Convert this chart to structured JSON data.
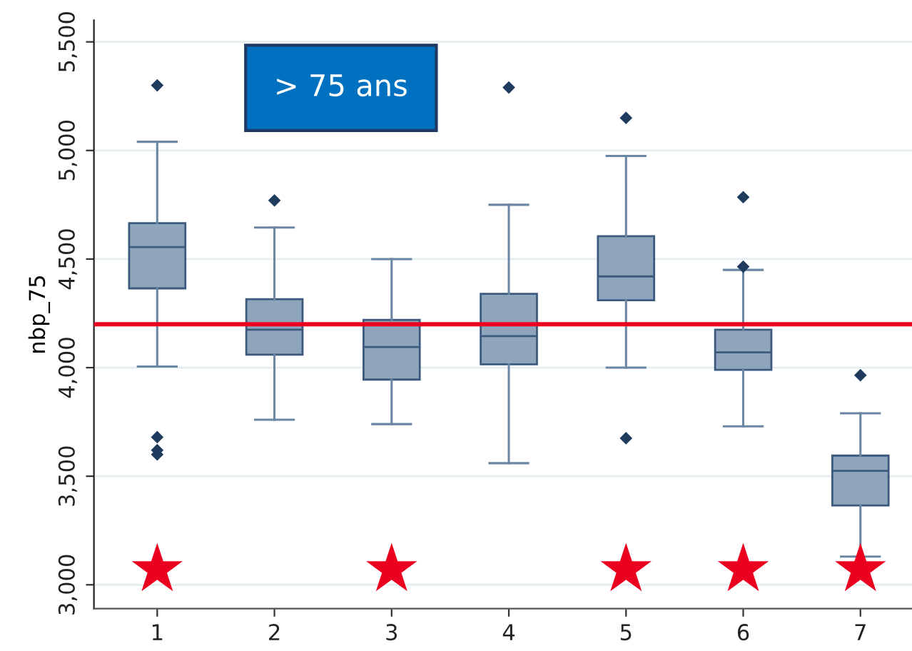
{
  "chart_data": {
    "type": "box",
    "ylabel": "nbp_75",
    "annotations": [
      "> 75 ans"
    ],
    "categories": [
      "1",
      "2",
      "3",
      "4",
      "5",
      "6",
      "7"
    ],
    "series": [
      {
        "type": "box",
        "color": "#8fa5bb",
        "marker": "diamond",
        "boxes": [
          {
            "low": 4005,
            "q1": 4365,
            "median": 4555,
            "q3": 4665,
            "high": 5040,
            "outliers": [
              5300,
              3680,
              3620,
              3600
            ]
          },
          {
            "low": 3760,
            "q1": 4060,
            "median": 4175,
            "q3": 4315,
            "high": 4645,
            "outliers": [
              4770
            ]
          },
          {
            "low": 3740,
            "q1": 3945,
            "median": 4095,
            "q3": 4220,
            "high": 4500
          },
          {
            "low": 3560,
            "q1": 4015,
            "median": 4145,
            "q3": 4340,
            "high": 4750,
            "outliers": [
              5290
            ]
          },
          {
            "low": 4000,
            "q1": 4310,
            "median": 4420,
            "q3": 4605,
            "high": 4975,
            "outliers": [
              5150,
              3675
            ]
          },
          {
            "low": 3730,
            "q1": 3990,
            "median": 4070,
            "q3": 4175,
            "high": 4450,
            "outliers": [
              4785,
              4465
            ]
          },
          {
            "low": 3130,
            "q1": 3365,
            "median": 3525,
            "q3": 3595,
            "high": 3790,
            "outliers": [
              3965
            ]
          }
        ]
      },
      {
        "type": "scatter",
        "color": "#ec0020",
        "marker": "star",
        "values": [
          3070,
          null,
          3070,
          null,
          3070,
          3070,
          3070
        ]
      }
    ],
    "ref_lines": [
      {
        "axis": "y",
        "value": 4200,
        "color": "#ec0020"
      }
    ],
    "ylim": [
      2890,
      5600
    ],
    "yticks": [
      {
        "value": 3000,
        "label": "3,000"
      },
      {
        "value": 3500,
        "label": "3,500"
      },
      {
        "value": 4000,
        "label": "4,000"
      },
      {
        "value": 4500,
        "label": "4,500"
      },
      {
        "value": 5000,
        "label": "5,000"
      },
      {
        "value": 5500,
        "label": "5,500"
      }
    ],
    "grid": "y"
  }
}
